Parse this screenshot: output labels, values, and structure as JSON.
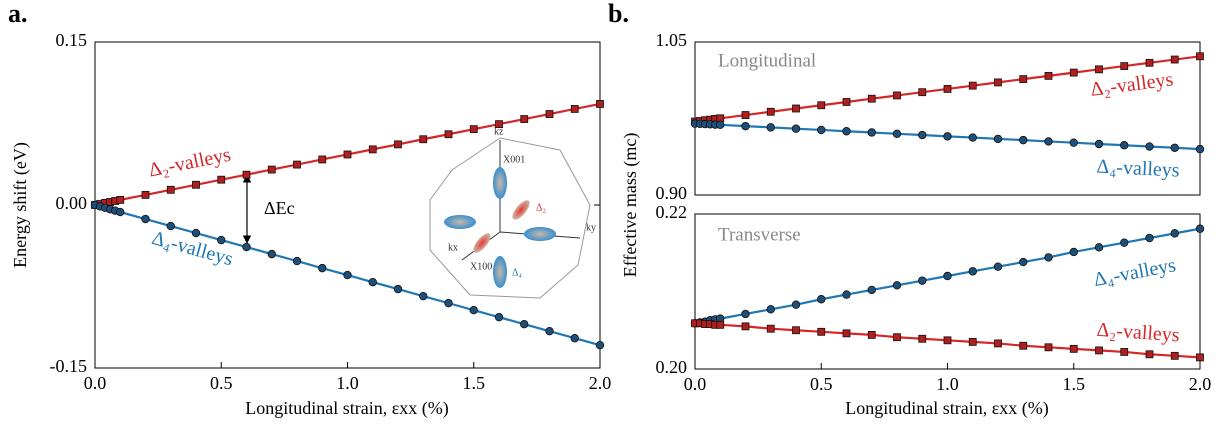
{
  "chart_data": [
    {
      "type": "line",
      "panel_label": "a.",
      "ylabel": "Energy shift (eV)",
      "xlabel": "Longitudinal strain, εxx (%)",
      "annotation": "ΔEc",
      "inset_labels": [
        "kz",
        "X001",
        "Δ₂",
        "ky",
        "kx",
        "X100",
        "Δ₄"
      ],
      "x": [
        0,
        0.02,
        0.04,
        0.06,
        0.08,
        0.1,
        0.2,
        0.3,
        0.4,
        0.5,
        0.6,
        0.7,
        0.8,
        0.9,
        1.0,
        1.1,
        1.2,
        1.3,
        1.4,
        1.5,
        1.6,
        1.7,
        1.8,
        1.9,
        2.0
      ],
      "xlim": [
        0,
        2
      ],
      "xticks": [
        {
          "value": 0,
          "label": "0.0"
        },
        0.5,
        {
          "value": 1,
          "label": "1.0"
        },
        1.5,
        {
          "value": 2,
          "label": "2.0"
        }
      ],
      "ylim": [
        -0.15,
        0.15
      ],
      "yticks": [
        -0.15,
        {
          "value": 0,
          "label": "0.00"
        },
        0.15
      ],
      "series": [
        {
          "name": "Δ₂-valleys",
          "color": "#d62728",
          "marker": "square",
          "values": [
            0,
            0.0009,
            0.0019,
            0.0028,
            0.0037,
            0.0047,
            0.0093,
            0.014,
            0.0186,
            0.0233,
            0.0279,
            0.0326,
            0.0372,
            0.0419,
            0.0465,
            0.0512,
            0.0558,
            0.0605,
            0.0651,
            0.0698,
            0.0744,
            0.0791,
            0.0837,
            0.0884,
            0.093
          ]
        },
        {
          "name": "Δ₄-valleys",
          "color": "#1f77b4",
          "marker": "circle",
          "values": [
            0,
            -0.0013,
            -0.0026,
            -0.0039,
            -0.0052,
            -0.0065,
            -0.0129,
            -0.0194,
            -0.0258,
            -0.0323,
            -0.0387,
            -0.0452,
            -0.0516,
            -0.0581,
            -0.0645,
            -0.071,
            -0.0774,
            -0.0839,
            -0.0903,
            -0.0968,
            -0.1032,
            -0.1097,
            -0.1161,
            -0.1226,
            -0.129
          ]
        }
      ]
    },
    {
      "type": "line",
      "panel_label": "b.",
      "ylabel": "Effective mass (mc)",
      "subtitle": "Longitudinal",
      "x": [
        0,
        0.02,
        0.04,
        0.06,
        0.08,
        0.1,
        0.2,
        0.3,
        0.4,
        0.5,
        0.6,
        0.7,
        0.8,
        0.9,
        1.0,
        1.1,
        1.2,
        1.3,
        1.4,
        1.5,
        1.6,
        1.7,
        1.8,
        1.9,
        2.0
      ],
      "xlim": [
        0,
        2
      ],
      "ylim": [
        0.9,
        1.05
      ],
      "yticks": [
        {
          "value": 0.9,
          "label": "0.90"
        },
        1.05
      ],
      "series": [
        {
          "name": "Δ₂-valleys",
          "color": "#d62728",
          "marker": "square",
          "values": [
            0.972,
            0.9726,
            0.9733,
            0.9739,
            0.9746,
            0.9752,
            0.9784,
            0.9816,
            0.9848,
            0.988,
            0.9912,
            0.9944,
            0.9976,
            1.0008,
            1.004,
            1.0072,
            1.0104,
            1.0136,
            1.0168,
            1.02,
            1.0232,
            1.0264,
            1.0296,
            1.0328,
            1.036
          ]
        },
        {
          "name": "Δ₄-valleys",
          "color": "#1f77b4",
          "marker": "circle",
          "values": [
            0.97,
            0.9698,
            0.9695,
            0.9693,
            0.969,
            0.9688,
            0.9675,
            0.9663,
            0.965,
            0.9638,
            0.9625,
            0.9613,
            0.96,
            0.9588,
            0.9575,
            0.9563,
            0.955,
            0.9538,
            0.9525,
            0.9513,
            0.95,
            0.9488,
            0.9475,
            0.9463,
            0.945
          ]
        }
      ]
    },
    {
      "type": "line",
      "subtitle": "Transverse",
      "xlabel": "Longitudinal strain, εxx (%)",
      "x": [
        0,
        0.02,
        0.04,
        0.06,
        0.08,
        0.1,
        0.2,
        0.3,
        0.4,
        0.5,
        0.6,
        0.7,
        0.8,
        0.9,
        1.0,
        1.1,
        1.2,
        1.3,
        1.4,
        1.5,
        1.6,
        1.7,
        1.8,
        1.9,
        2.0
      ],
      "xlim": [
        0,
        2
      ],
      "xticks": [
        {
          "value": 0,
          "label": "0.0"
        },
        0.5,
        {
          "value": 1,
          "label": "1.0"
        },
        1.5,
        {
          "value": 2,
          "label": "2.0"
        }
      ],
      "ylim": [
        0.2,
        0.22
      ],
      "yticks": [
        {
          "value": 0.2,
          "label": "0.20"
        },
        0.22
      ],
      "series": [
        {
          "name": "Δ₄-valleys",
          "color": "#1f77b4",
          "marker": "circle",
          "values": [
            0.2059,
            0.206,
            0.2061,
            0.2063,
            0.2064,
            0.2065,
            0.2071,
            0.2077,
            0.2083,
            0.209,
            0.2096,
            0.2102,
            0.2108,
            0.2114,
            0.212,
            0.2126,
            0.2132,
            0.2138,
            0.2144,
            0.2151,
            0.2157,
            0.2163,
            0.2169,
            0.2175,
            0.2181
          ]
        },
        {
          "name": "Δ₂-valleys",
          "color": "#d62728",
          "marker": "square",
          "values": [
            0.2059,
            0.2059,
            0.2058,
            0.2058,
            0.2057,
            0.2057,
            0.2055,
            0.2052,
            0.205,
            0.2048,
            0.2046,
            0.2044,
            0.2041,
            0.2039,
            0.2037,
            0.2035,
            0.2033,
            0.203,
            0.2028,
            0.2026,
            0.2024,
            0.2022,
            0.2019,
            0.2017,
            0.2015
          ]
        }
      ]
    }
  ]
}
